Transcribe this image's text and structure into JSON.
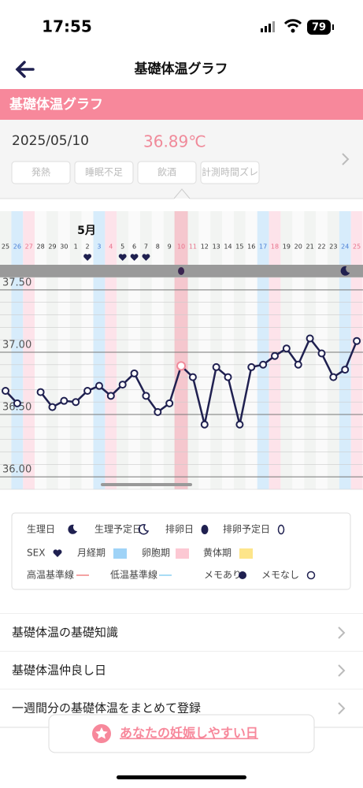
{
  "status": {
    "time": "17:55",
    "battery": "79"
  },
  "nav": {
    "title": "基礎体温グラフ"
  },
  "section": {
    "title": "基礎体温グラフ"
  },
  "record": {
    "date": "2025/05/10",
    "temperature": "36.89℃",
    "tags": [
      "発熱",
      "睡眠不足",
      "飲酒",
      "計測時間ズレ"
    ]
  },
  "chart_data": {
    "type": "line",
    "month_label": "5月",
    "categories": [
      "25",
      "26",
      "27",
      "28",
      "29",
      "30",
      "1",
      "2",
      "3",
      "4",
      "5",
      "6",
      "7",
      "8",
      "9",
      "10",
      "11",
      "12",
      "13",
      "14",
      "15",
      "16",
      "17",
      "18",
      "19",
      "20",
      "21",
      "22",
      "23",
      "24",
      "25"
    ],
    "category_colors": [
      "#333",
      "#4a7fd6",
      "#e8708a",
      "#333",
      "#333",
      "#333",
      "#333",
      "#333",
      "#4a7fd6",
      "#e8708a",
      "#333",
      "#333",
      "#333",
      "#333",
      "#333",
      "#e8708a",
      "#e8708a",
      "#333",
      "#333",
      "#333",
      "#333",
      "#333",
      "#4a7fd6",
      "#e8708a",
      "#333",
      "#333",
      "#333",
      "#333",
      "#333",
      "#4a7fd6",
      "#e8708a"
    ],
    "column_colors": [
      null,
      "#d7ecfb",
      "#fde3ea",
      null,
      null,
      null,
      null,
      null,
      "#d7ecfb",
      "#fde3ea",
      null,
      null,
      null,
      null,
      null,
      null,
      null,
      null,
      null,
      null,
      null,
      null,
      "#d7ecfb",
      "#fde3ea",
      null,
      null,
      null,
      null,
      null,
      "#d7ecfb",
      "#fde3ea"
    ],
    "sex": [
      false,
      false,
      false,
      false,
      false,
      false,
      false,
      true,
      false,
      false,
      true,
      true,
      true,
      false,
      false,
      false,
      false,
      false,
      false,
      false,
      false,
      false,
      false,
      false,
      false,
      false,
      false,
      false,
      false,
      false,
      false
    ],
    "markers": [
      null,
      null,
      null,
      null,
      null,
      null,
      null,
      null,
      null,
      null,
      null,
      null,
      null,
      null,
      null,
      "ovulation",
      null,
      null,
      null,
      null,
      null,
      null,
      null,
      null,
      null,
      null,
      null,
      null,
      null,
      "period",
      null
    ],
    "selected": [
      false,
      false,
      false,
      false,
      false,
      false,
      false,
      false,
      false,
      false,
      false,
      false,
      false,
      false,
      false,
      true,
      false,
      false,
      false,
      false,
      false,
      false,
      false,
      false,
      false,
      false,
      false,
      false,
      false,
      false,
      false
    ],
    "series": [
      {
        "name": "基礎体温",
        "color": "#1f2050",
        "values": [
          36.69,
          36.59,
          null,
          36.68,
          36.56,
          36.61,
          36.6,
          36.69,
          36.73,
          36.65,
          36.74,
          36.83,
          36.65,
          36.52,
          36.59,
          36.89,
          36.8,
          36.42,
          36.88,
          36.8,
          36.42,
          36.88,
          36.9,
          36.97,
          37.03,
          36.9,
          37.11,
          36.99,
          36.8,
          36.86,
          37.09
        ]
      }
    ],
    "ylim": [
      35.9,
      37.6
    ],
    "yticks": [
      {
        "value": 36,
        "label": "36.00"
      },
      {
        "value": 36.5,
        "label": "36.50"
      },
      {
        "value": 37,
        "label": "37.00"
      },
      {
        "value": 37.5,
        "label": "37.50"
      }
    ],
    "grid": true,
    "selected_color": "#f08a9a"
  },
  "legend": [
    "生理日",
    "生理予定日",
    "排卵日",
    "排卵予定日",
    "SEX",
    "月経期",
    "卵胞期",
    "黄体期",
    "高温基準線",
    "低温基準線",
    "メモあり",
    "メモなし"
  ],
  "menu": [
    "基礎体温の基礎知識",
    "基礎体温仲良し日",
    "一週間分の基礎体温をまとめて登録"
  ],
  "button": {
    "label": "あなたの妊娠しやすい日"
  }
}
